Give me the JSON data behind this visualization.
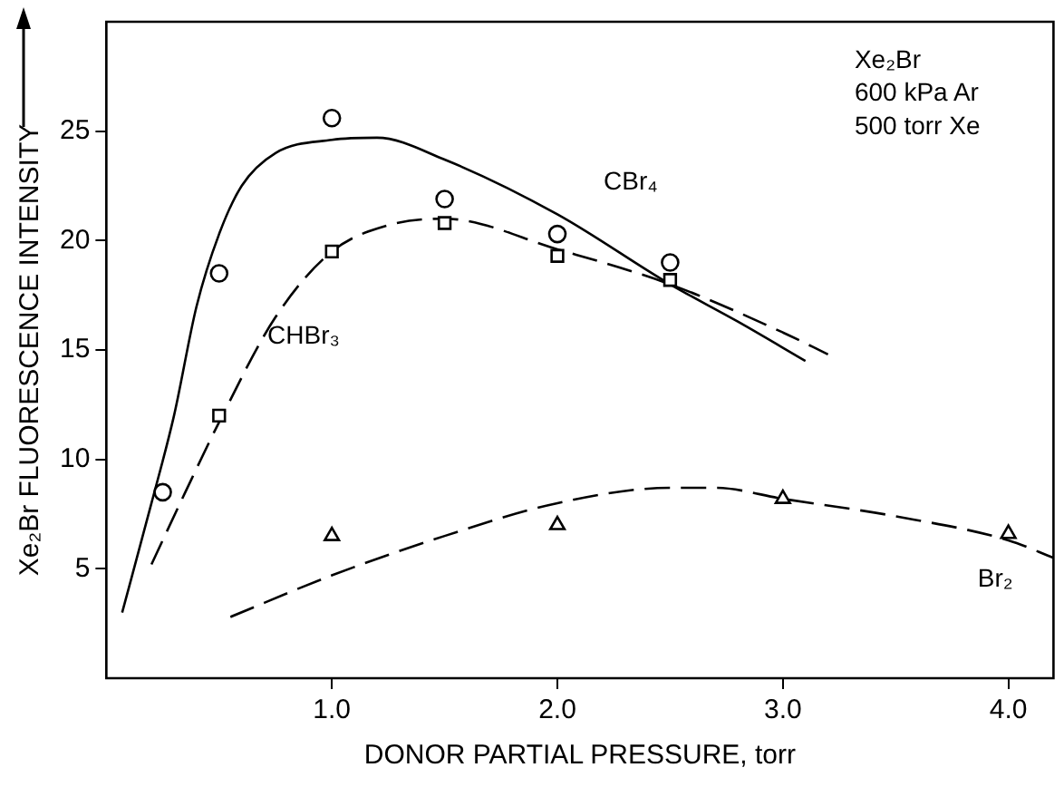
{
  "chart_data": {
    "type": "scatter",
    "xlabel": "DONOR PARTIAL PRESSURE, torr",
    "ylabel": "Xe₂Br FLUORESCENCE INTENSITY",
    "xlim": [
      0,
      4.2
    ],
    "ylim": [
      0,
      30
    ],
    "xticks": [
      {
        "value": 1,
        "label": "1.0"
      },
      {
        "value": 2,
        "label": "2.0"
      },
      {
        "value": 3,
        "label": "3.0"
      },
      {
        "value": 4,
        "label": "4.0"
      }
    ],
    "yticks": [
      5,
      10,
      15,
      20,
      25
    ],
    "grid": false,
    "legend": false,
    "series": [
      {
        "type": "scatter",
        "color": "#000000",
        "marker": "circle",
        "x": [
          0.25,
          0.5,
          1.0,
          1.5,
          2.0,
          2.5
        ],
        "values": [
          8.5,
          18.5,
          25.6,
          21.9,
          20.3,
          19.0
        ]
      },
      {
        "type": "scatter",
        "color": "#000000",
        "marker": "square",
        "x": [
          0.5,
          1.0,
          1.5,
          2.0,
          2.5
        ],
        "values": [
          12.0,
          19.5,
          20.8,
          19.3,
          18.2
        ]
      },
      {
        "type": "scatter",
        "color": "#000000",
        "marker": "triangle",
        "x": [
          1.0,
          2.0,
          3.0,
          4.0
        ],
        "values": [
          6.5,
          7.0,
          8.2,
          6.6
        ]
      },
      {
        "type": "line",
        "color": "#000000",
        "line_style": "solid",
        "x": [
          0.07,
          0.2,
          0.3,
          0.4,
          0.5,
          0.6,
          0.75,
          1.0,
          1.2,
          1.5,
          2.0,
          2.5,
          2.8,
          3.1
        ],
        "values": [
          3.0,
          8.0,
          12.0,
          17.0,
          20.3,
          22.5,
          24.0,
          24.6,
          24.7,
          23.7,
          21.2,
          18.0,
          16.3,
          14.5
        ]
      },
      {
        "type": "line",
        "color": "#000000",
        "line_style": "dashed",
        "x": [
          0.2,
          0.35,
          0.5,
          0.75,
          1.0,
          1.25,
          1.5,
          2.0,
          2.5,
          3.0,
          3.2
        ],
        "values": [
          5.2,
          8.5,
          11.7,
          16.5,
          19.5,
          20.7,
          21.0,
          19.6,
          18.0,
          15.8,
          14.8
        ]
      },
      {
        "type": "line",
        "color": "#000000",
        "line_style": "dashed",
        "x": [
          0.55,
          1.0,
          1.5,
          2.0,
          2.5,
          2.7,
          3.0,
          3.5,
          4.0,
          4.2
        ],
        "values": [
          2.8,
          4.7,
          6.5,
          8.0,
          8.7,
          8.7,
          8.2,
          7.4,
          6.3,
          5.5
        ]
      }
    ],
    "annotations": [
      "CBr₄",
      "CHBr₃",
      "Br₂",
      "Xe₂Br",
      "600 kPa Ar",
      "500 torr Xe"
    ]
  }
}
